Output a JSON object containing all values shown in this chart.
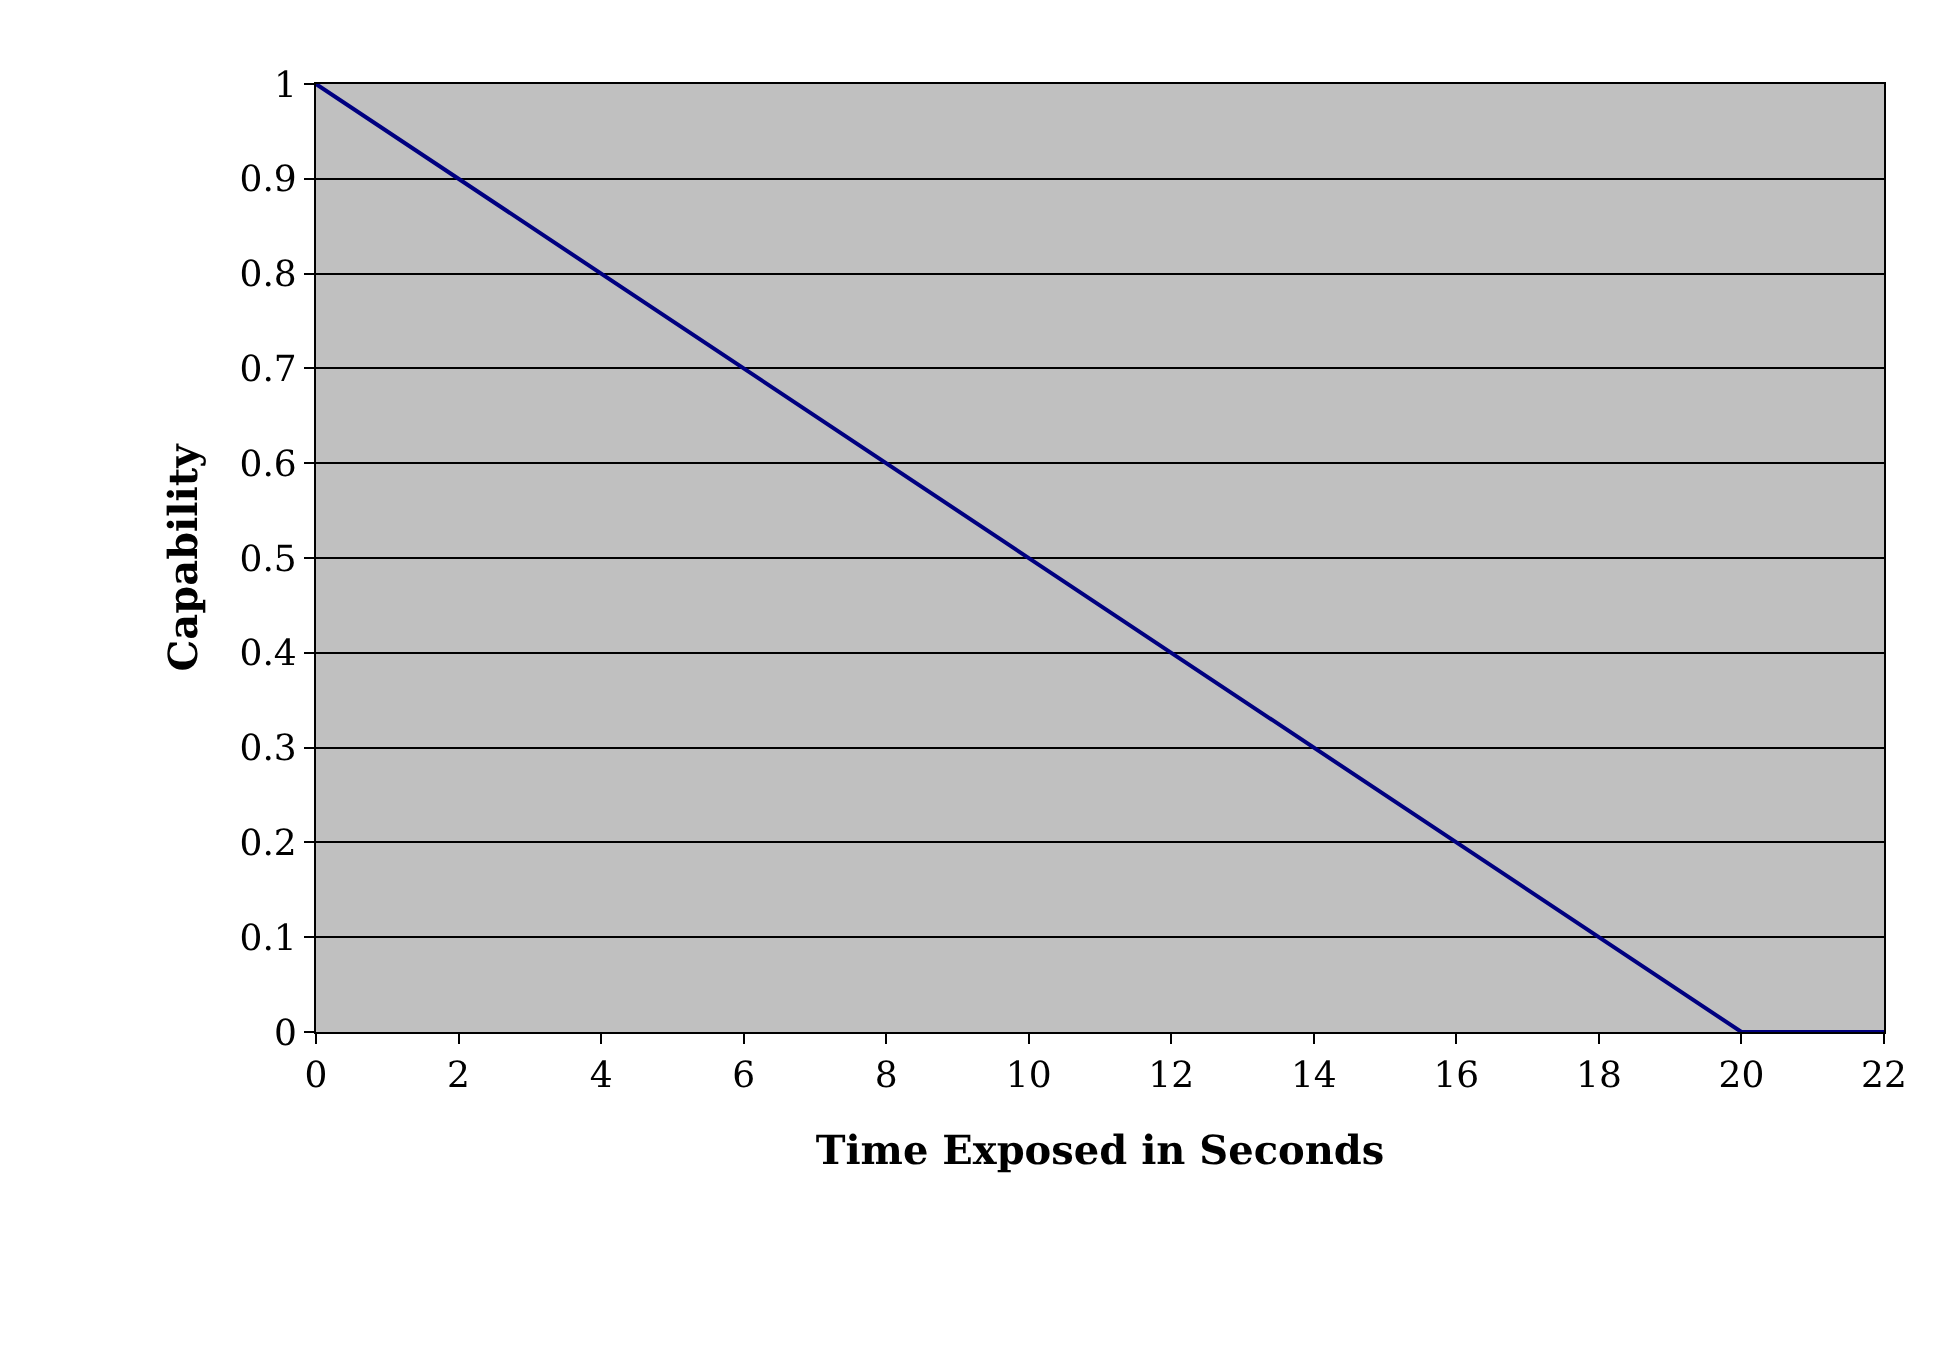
{
  "chart_data": {
    "type": "line",
    "xlabel": "Time Exposed in Seconds",
    "ylabel": "Capability",
    "x": [
      0,
      20,
      22
    ],
    "series": [
      {
        "color": "#000080",
        "values": [
          1,
          0,
          0
        ]
      }
    ],
    "xlim": [
      0,
      22
    ],
    "xticks": [
      0,
      2,
      4,
      6,
      8,
      10,
      12,
      14,
      16,
      18,
      20,
      22
    ],
    "ylim": [
      0,
      1
    ],
    "yticks": [
      0,
      0.1,
      0.2,
      0.3,
      0.4,
      0.5,
      0.6,
      0.7,
      0.8,
      0.9,
      1
    ],
    "grid": "y",
    "marker": "none",
    "line_style": "solid"
  }
}
